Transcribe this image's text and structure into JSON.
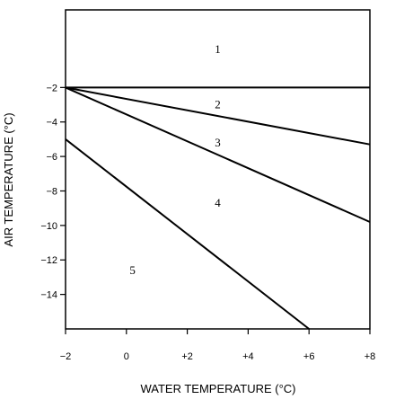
{
  "chart_data": {
    "type": "line",
    "xlabel": "WATER TEMPERATURE (°C)",
    "ylabel": "AIR TEMPERATURE (°C)",
    "xlim": [
      -2,
      8
    ],
    "ylim": [
      -16,
      2.5
    ],
    "x_ticks": [
      {
        "value": -2,
        "label": "−2"
      },
      {
        "value": 0,
        "label": "0"
      },
      {
        "value": 2,
        "label": "+2"
      },
      {
        "value": 4,
        "label": "+4"
      },
      {
        "value": 6,
        "label": "+6"
      },
      {
        "value": 8,
        "label": "+8"
      }
    ],
    "y_ticks": [
      {
        "value": -2,
        "label": "−2"
      },
      {
        "value": -4,
        "label": "−4"
      },
      {
        "value": -6,
        "label": "−6"
      },
      {
        "value": -8,
        "label": "−8"
      },
      {
        "value": -10,
        "label": "−10"
      },
      {
        "value": -12,
        "label": "−12"
      },
      {
        "value": -14,
        "label": "−14"
      }
    ],
    "grid": false,
    "series": [
      {
        "x": [
          -2,
          8
        ],
        "y": [
          -2,
          -2
        ]
      },
      {
        "x": [
          -2,
          8
        ],
        "y": [
          -2,
          -5.3
        ]
      },
      {
        "x": [
          -2,
          8
        ],
        "y": [
          -2,
          -9.8
        ]
      },
      {
        "x": [
          -2,
          6
        ],
        "y": [
          -5,
          -16
        ]
      }
    ],
    "annotations": [
      {
        "text": "1",
        "x": 3,
        "y": 0.2
      },
      {
        "text": "2",
        "x": 3,
        "y": -3
      },
      {
        "text": "3",
        "x": 3,
        "y": -5.2
      },
      {
        "text": "4",
        "x": 3,
        "y": -8.7
      },
      {
        "text": "5",
        "x": 0.2,
        "y": -12.6
      }
    ]
  }
}
